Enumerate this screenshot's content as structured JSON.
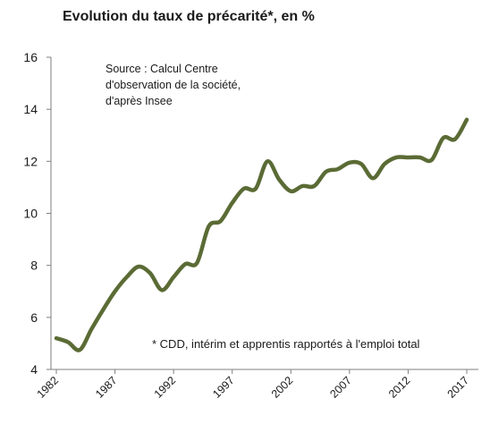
{
  "chart_data": {
    "type": "line",
    "title": "Evolution du taux de précarité*, en %",
    "xlabel": "",
    "ylabel": "",
    "xlim": [
      1982,
      2017
    ],
    "ylim": [
      4,
      16
    ],
    "x_ticks": [
      1982,
      1987,
      1992,
      1997,
      2002,
      2007,
      2012,
      2017
    ],
    "x_tick_labels": [
      "1982",
      "1987",
      "1992",
      "1997",
      "2002",
      "2007",
      "2012",
      "2017"
    ],
    "y_ticks": [
      4,
      6,
      8,
      10,
      12,
      14,
      16
    ],
    "y_tick_labels": [
      "4",
      "6",
      "8",
      "10",
      "12",
      "14",
      "16"
    ],
    "grid": false,
    "series": [
      {
        "color": "#5b6b35",
        "x": [
          1982,
          1983,
          1984,
          1985,
          1986,
          1987,
          1988,
          1989,
          1990,
          1991,
          1992,
          1993,
          1994,
          1995,
          1996,
          1997,
          1998,
          1999,
          2000,
          2001,
          2002,
          2003,
          2004,
          2005,
          2006,
          2007,
          2008,
          2009,
          2010,
          2011,
          2012,
          2013,
          2014,
          2015,
          2016,
          2017
        ],
        "y": [
          5.2,
          5.05,
          4.75,
          5.55,
          6.3,
          7.0,
          7.55,
          7.95,
          7.7,
          7.05,
          7.55,
          8.05,
          8.1,
          9.5,
          9.7,
          10.4,
          10.95,
          10.95,
          12.0,
          11.3,
          10.85,
          11.05,
          11.05,
          11.6,
          11.7,
          11.95,
          11.9,
          11.35,
          11.9,
          12.15,
          12.15,
          12.15,
          12.05,
          12.9,
          12.85,
          13.6
        ]
      }
    ],
    "annotations": {
      "source_lines": [
        "Source : Calcul Centre",
        "d'observation de la société,",
        "d'après Insee"
      ],
      "footnote": "* CDD, intérim et apprentis rapportés à l'emploi total"
    }
  }
}
